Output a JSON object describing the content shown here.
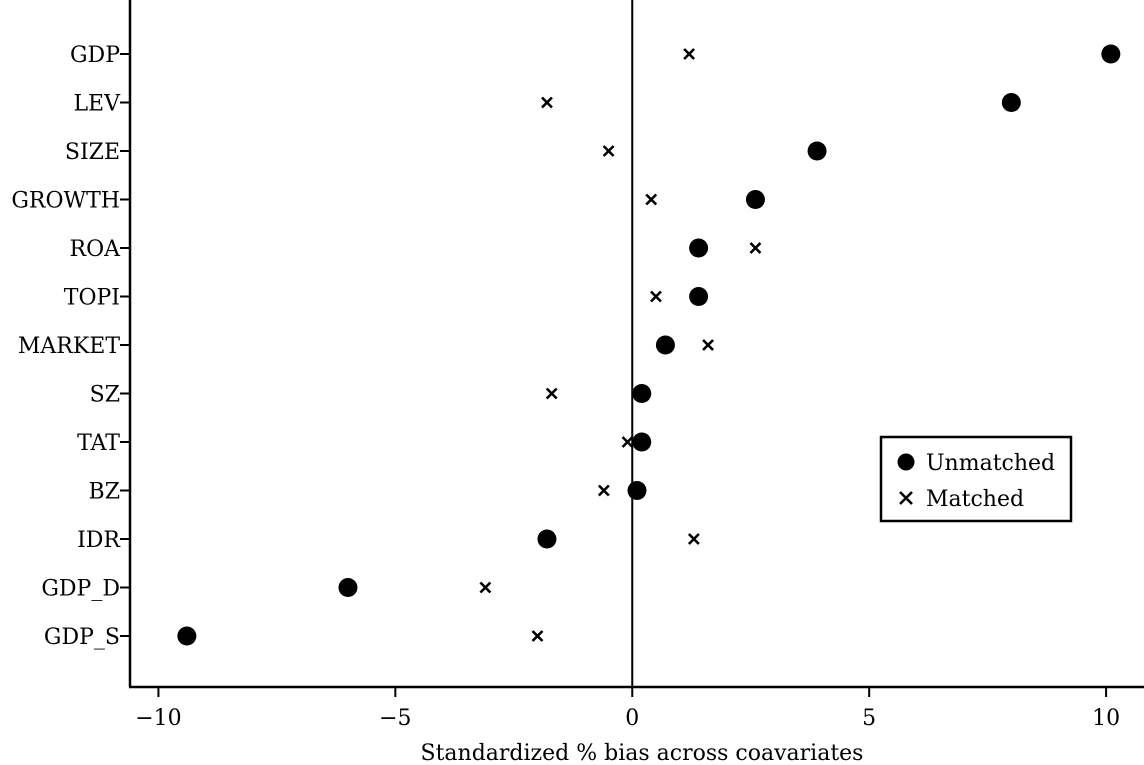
{
  "chart_data": {
    "type": "scatter",
    "title": "",
    "xlabel": "Standardized % bias across coavariates",
    "ylabel": "",
    "xlim": [
      -10.6,
      10.8
    ],
    "xticks": [
      -10,
      -5,
      0,
      5,
      10
    ],
    "xtick_labels": [
      "−10",
      "−5",
      "0",
      "5",
      "10"
    ],
    "grid": false,
    "reference_line_x": 0,
    "legend_position": "lower-right",
    "categories": [
      "GDP",
      "LEV",
      "SIZE",
      "GROWTH",
      "ROA",
      "TOPI",
      "MARKET",
      "SZ",
      "TAT",
      "BZ",
      "IDR",
      "GDP_D",
      "GDP_S"
    ],
    "series": [
      {
        "name": "Unmatched",
        "marker": "circle",
        "values": [
          10.1,
          8.0,
          3.9,
          2.6,
          1.4,
          1.4,
          0.7,
          0.2,
          0.2,
          0.1,
          -1.8,
          -6.0,
          -9.4
        ]
      },
      {
        "name": "Matched",
        "marker": "x",
        "values": [
          1.2,
          -1.8,
          -0.5,
          0.4,
          2.6,
          0.5,
          1.6,
          -1.7,
          -0.1,
          -0.6,
          1.3,
          -3.1,
          -2.0
        ]
      }
    ]
  }
}
